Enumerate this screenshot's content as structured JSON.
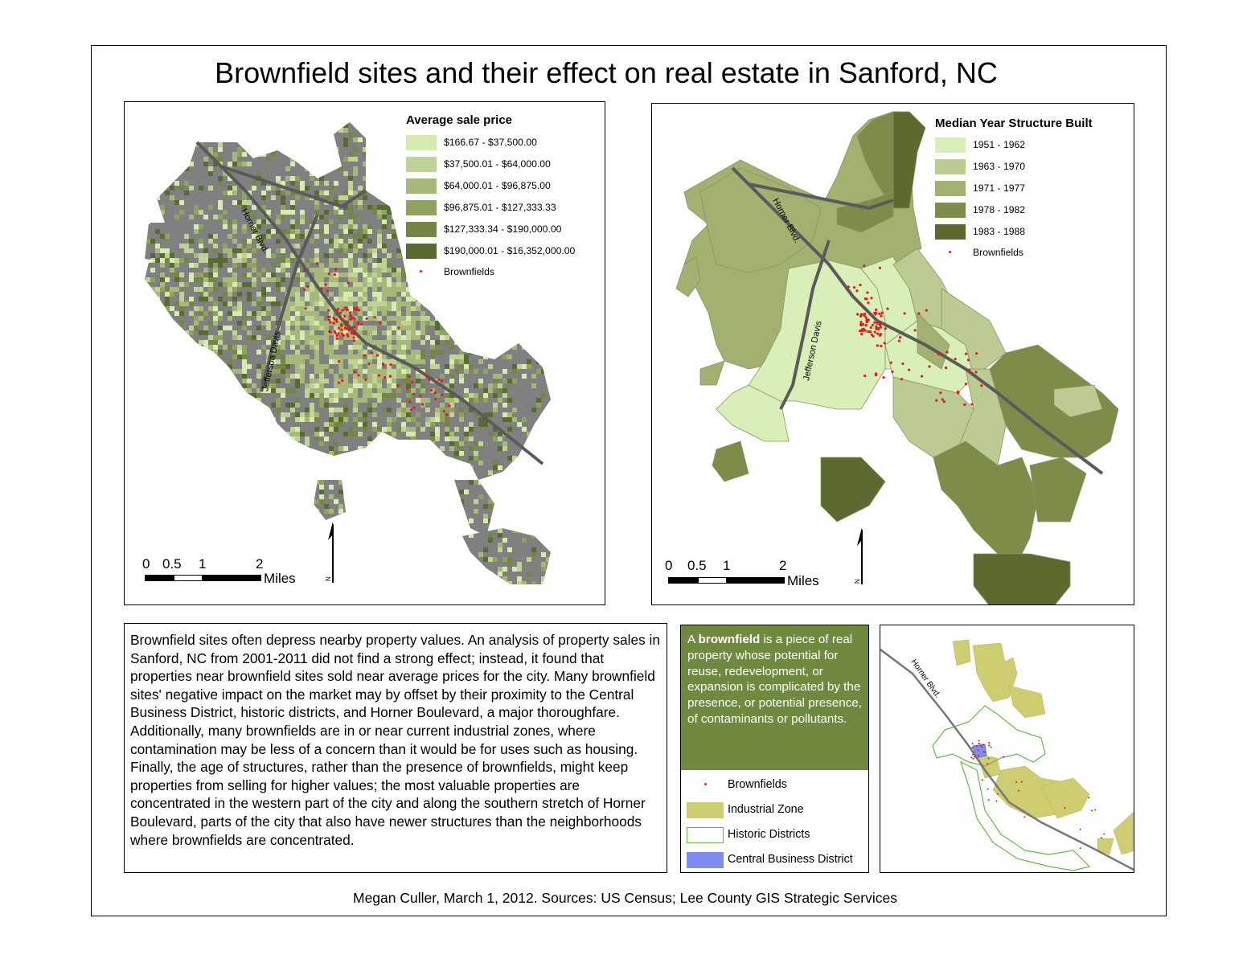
{
  "title": "Brownfield sites and their effect on real estate in Sanford, NC",
  "map1": {
    "legend_title": "Average sale price",
    "classes": [
      {
        "label": "$166.67 - $37,500.00",
        "color": "#d6ebb2"
      },
      {
        "label": "$37,500.01 - $64,000.00",
        "color": "#bfd494"
      },
      {
        "label": "$64,000.01 - $96,875.00",
        "color": "#a6b97a"
      },
      {
        "label": "$96,875.01 - $127,333.33",
        "color": "#8fa35f"
      },
      {
        "label": "$127,333.34 - $190,000.00",
        "color": "#738646"
      },
      {
        "label": "$190,000.01 - $16,352,000.00",
        "color": "#586b30"
      }
    ],
    "brownfields_label": "Brownfields",
    "road_horner": "Horner Blvd.",
    "road_jefferson": "Jefferson Davis",
    "scale_ticks": [
      "0",
      "0.5",
      "1",
      "2"
    ],
    "scale_unit": "Miles",
    "north": "N"
  },
  "map2": {
    "legend_title": "Median Year Structure Built",
    "classes": [
      {
        "label": "1951 - 1962",
        "color": "#d9efb8"
      },
      {
        "label": "1963 - 1970",
        "color": "#bccb91"
      },
      {
        "label": "1971 - 1977",
        "color": "#a2b070"
      },
      {
        "label": "1978 - 1982",
        "color": "#7e8c4a"
      },
      {
        "label": "1983 - 1988",
        "color": "#5c6a30"
      }
    ],
    "brownfields_label": "Brownfields",
    "road_horner": "Horner Blvd.",
    "road_jefferson": "Jefferson Davis",
    "scale_ticks": [
      "0",
      "0.5",
      "1",
      "2"
    ],
    "scale_unit": "Miles",
    "north": "N"
  },
  "body_text": "Brownfield sites often depress nearby property values. An analysis of property sales in Sanford, NC from 2001-2011 did not find a strong effect; instead, it found that properties near brownfield sites sold near average prices for the city. Many brownfield sites' negative impact on the market may by offset by their proximity to the Central Business District, historic districts, and Horner Boulevard, a major thoroughfare. Additionally, many brownfields are in or near current industrial zones, where contamination may be less of a concern than it would be for uses such as housing. Finally, the age of structures, rather than the presence of brownfields, might keep properties from selling for higher values; the most valuable properties are concentrated in the western part of the city and along the southern stretch of Horner Boulevard, parts of the city that also have newer structures than the neighborhoods where brownfields are concentrated.",
  "definition": {
    "prefix": "A",
    "term": "brownfield",
    "rest": "is a piece of real property whose potential for reuse, redevelopment, or expansion is complicated by the presence, or potential presence, of contaminants or pollutants.",
    "color": "#6f8a3f"
  },
  "inset_legend": [
    {
      "label": "Brownfields",
      "kind": "dot",
      "color": "#e02020"
    },
    {
      "label": "Industrial Zone",
      "kind": "fill",
      "color": "#cfcd72"
    },
    {
      "label": "Historic Districts",
      "kind": "outline",
      "color": "#66b84a"
    },
    {
      "label": "Central Business District",
      "kind": "fill",
      "color": "#7f8cf0"
    }
  ],
  "inset_road": "Horner Blvd.",
  "credit": "Megan Culler, March 1, 2012. Sources: US Census; Lee County GIS Strategic Services"
}
